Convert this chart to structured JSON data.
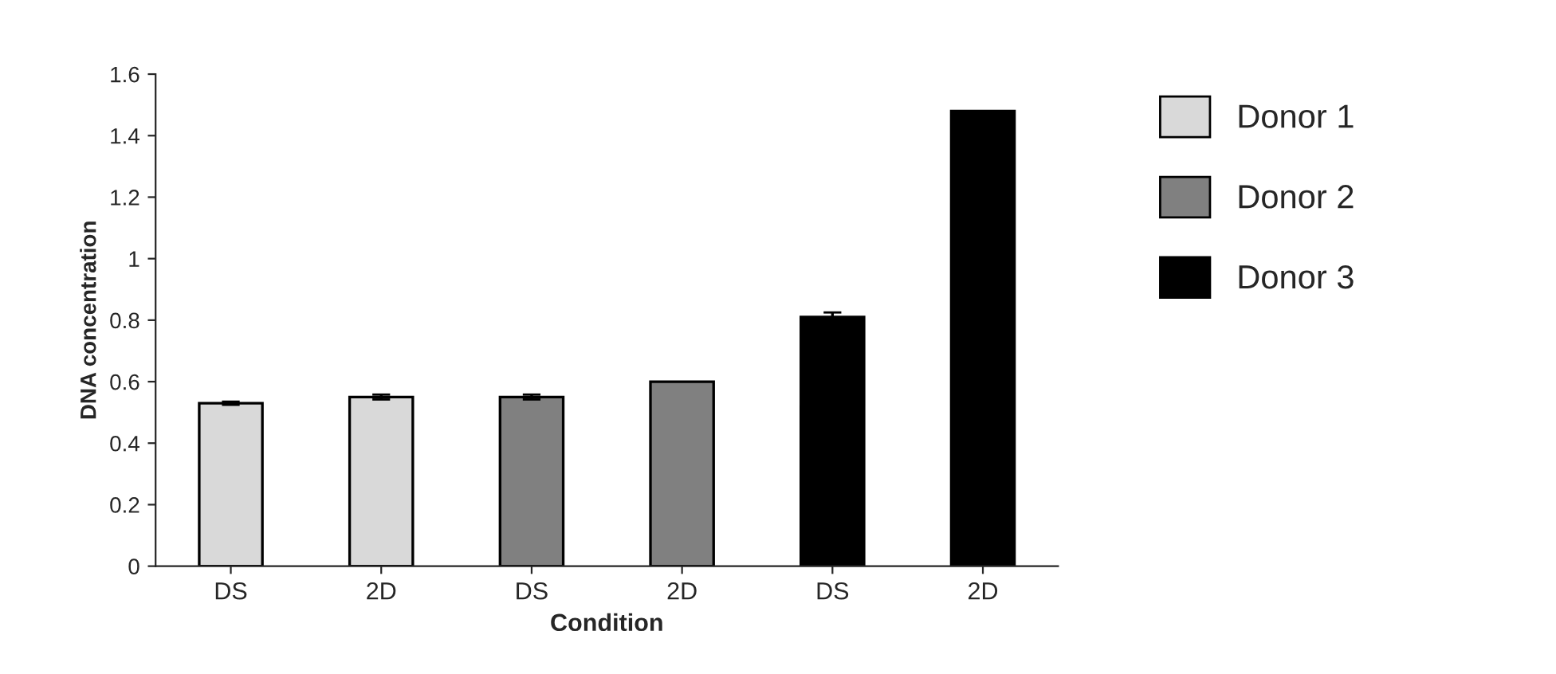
{
  "chart_data": {
    "type": "bar",
    "xlabel": "Condition",
    "ylabel": "DNA concentration",
    "categories": [
      "DS",
      "2D",
      "DS",
      "2D",
      "DS",
      "2D"
    ],
    "series": [
      {
        "name": "Donor 1",
        "color": "#d9d9d9",
        "values": [
          0.53,
          0.55,
          null,
          null,
          null,
          null
        ],
        "errors": [
          0.005,
          0.008,
          null,
          null,
          null,
          null
        ]
      },
      {
        "name": "Donor 2",
        "color": "#808080",
        "values": [
          null,
          null,
          0.55,
          0.6,
          null,
          null
        ],
        "errors": [
          null,
          null,
          0.008,
          null,
          null,
          null
        ]
      },
      {
        "name": "Donor 3",
        "color": "#000000",
        "values": [
          null,
          null,
          null,
          null,
          0.81,
          1.48
        ],
        "errors": [
          null,
          null,
          null,
          null,
          0.015,
          null
        ]
      }
    ],
    "ylim": [
      0,
      1.6
    ],
    "yticks": [
      0,
      0.2,
      0.4,
      0.6,
      0.8,
      1,
      1.2,
      1.4,
      1.6
    ],
    "grid": false,
    "legend": "right"
  }
}
